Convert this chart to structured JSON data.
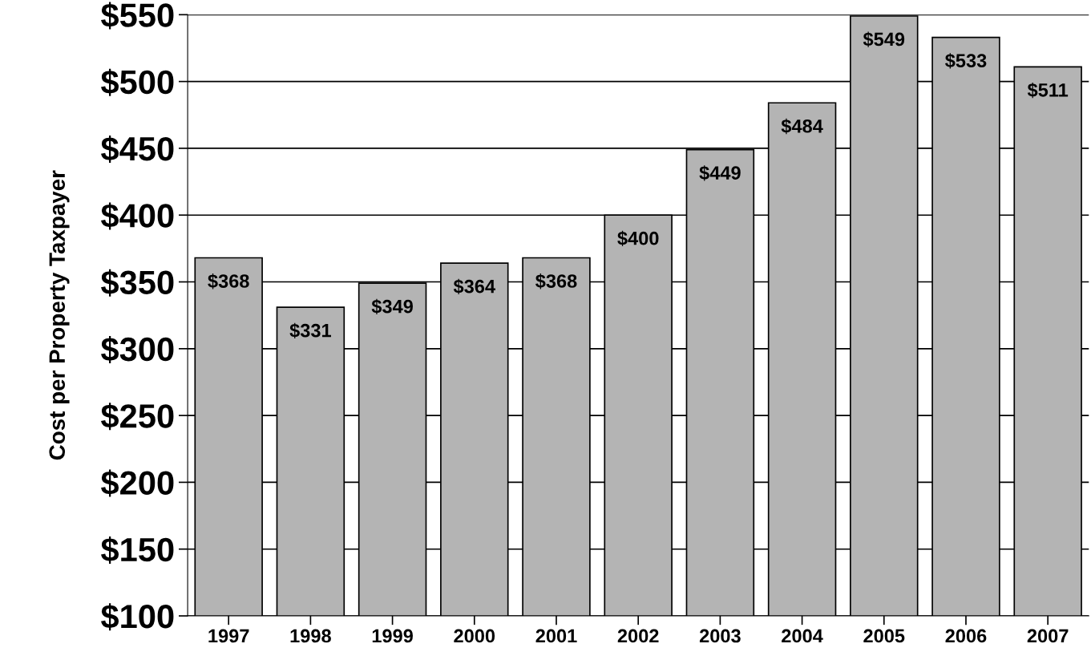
{
  "chart_data": {
    "type": "bar",
    "ylabel": "Cost per Property Taxpayer",
    "categories": [
      "1997",
      "1998",
      "1999",
      "2000",
      "2001",
      "2002",
      "2003",
      "2004",
      "2005",
      "2006",
      "2007"
    ],
    "values": [
      368,
      331,
      349,
      364,
      368,
      400,
      449,
      484,
      549,
      533,
      511
    ],
    "value_labels": [
      "$368",
      "$331",
      "$349",
      "$364",
      "$368",
      "$400",
      "$449",
      "$484",
      "$549",
      "$533",
      "$511"
    ],
    "color": "#b4b4b4",
    "ylim": [
      100,
      550
    ],
    "yticks": [
      {
        "value": 100,
        "label": "$100"
      },
      {
        "value": 150,
        "label": "$150"
      },
      {
        "value": 200,
        "label": "$200"
      },
      {
        "value": 250,
        "label": "$250"
      },
      {
        "value": 300,
        "label": "$300"
      },
      {
        "value": 350,
        "label": "$350"
      },
      {
        "value": 400,
        "label": "$400"
      },
      {
        "value": 450,
        "label": "$450"
      },
      {
        "value": 500,
        "label": "$500"
      },
      {
        "value": 550,
        "label": "$550"
      }
    ],
    "grid": "y"
  }
}
